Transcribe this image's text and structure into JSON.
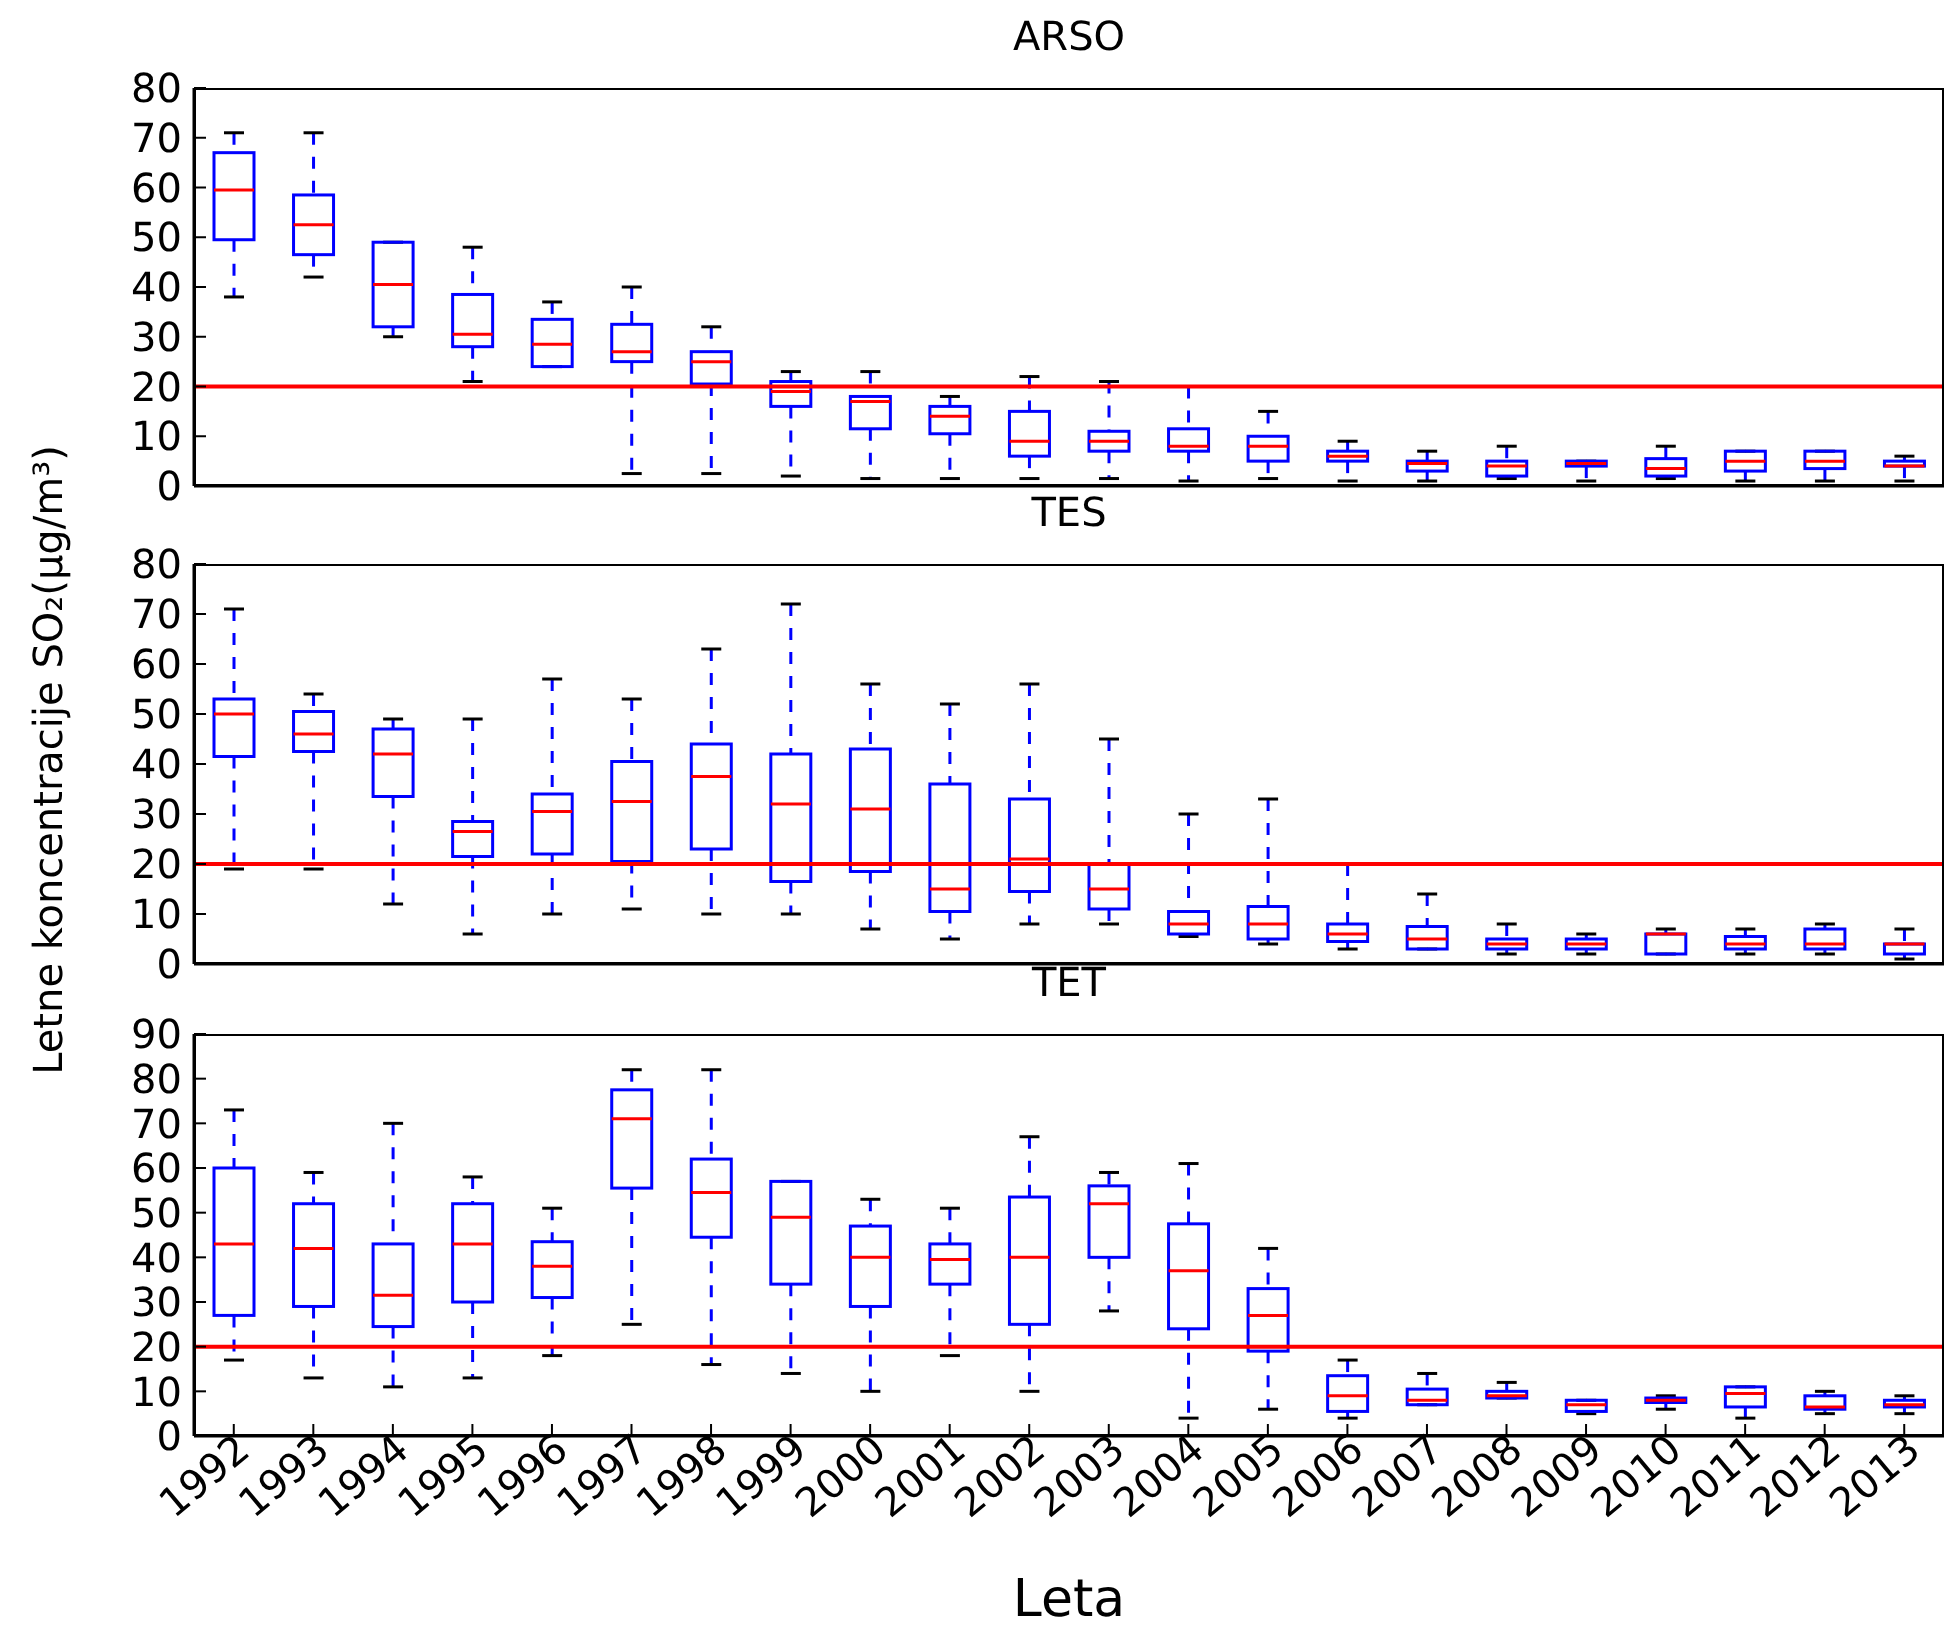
{
  "chart_data": [
    {
      "type": "box",
      "title": "ARSO",
      "categories": [
        "1992",
        "1993",
        "1994",
        "1995",
        "1996",
        "1997",
        "1998",
        "1999",
        "2000",
        "2001",
        "2002",
        "2003",
        "2004",
        "2005",
        "2006",
        "2007",
        "2008",
        "2009",
        "2010",
        "2011",
        "2012",
        "2013"
      ],
      "ylim": [
        0,
        80
      ],
      "yticks": [
        0,
        10,
        20,
        30,
        40,
        50,
        60,
        70,
        80
      ],
      "tick_labels": "y",
      "grid": false,
      "ref_lines": [
        {
          "axis": "y",
          "value": 20,
          "color": "#ff0000"
        }
      ],
      "series": [
        {
          "color": "#0000ff",
          "boxes": [
            {
              "low": 38,
              "q1": 49.5,
              "median": 59.5,
              "q3": 67,
              "high": 71
            },
            {
              "low": 42,
              "q1": 46.5,
              "median": 52.5,
              "q3": 58.5,
              "high": 71
            },
            {
              "low": 30,
              "q1": 32,
              "median": 40.5,
              "q3": 49,
              "high": 49
            },
            {
              "low": 21,
              "q1": 28,
              "median": 30.5,
              "q3": 38.5,
              "high": 48
            },
            {
              "low": 24,
              "q1": 24,
              "median": 28.5,
              "q3": 33.5,
              "high": 37
            },
            {
              "low": 2.5,
              "q1": 25,
              "median": 27,
              "q3": 32.5,
              "high": 40
            },
            {
              "low": 2.5,
              "q1": 20.5,
              "median": 25,
              "q3": 27,
              "high": 32
            },
            {
              "low": 2,
              "q1": 16,
              "median": 19,
              "q3": 21,
              "high": 23
            },
            {
              "low": 1.5,
              "q1": 11.5,
              "median": 17,
              "q3": 18,
              "high": 23
            },
            {
              "low": 1.5,
              "q1": 10.5,
              "median": 14,
              "q3": 16,
              "high": 18
            },
            {
              "low": 1.5,
              "q1": 6,
              "median": 9,
              "q3": 15,
              "high": 22
            },
            {
              "low": 1.5,
              "q1": 7,
              "median": 9,
              "q3": 11,
              "high": 21
            },
            {
              "low": 1,
              "q1": 7,
              "median": 8,
              "q3": 11.5,
              "high": 20
            },
            {
              "low": 1.5,
              "q1": 5,
              "median": 8,
              "q3": 10,
              "high": 15
            },
            {
              "low": 1,
              "q1": 5,
              "median": 6,
              "q3": 7,
              "high": 9
            },
            {
              "low": 1,
              "q1": 3,
              "median": 4.5,
              "q3": 5,
              "high": 7
            },
            {
              "low": 1.5,
              "q1": 2,
              "median": 4,
              "q3": 5,
              "high": 8
            },
            {
              "low": 1,
              "q1": 4,
              "median": 4.5,
              "q3": 5,
              "high": 5
            },
            {
              "low": 1.5,
              "q1": 2,
              "median": 3.5,
              "q3": 5.5,
              "high": 8
            },
            {
              "low": 1,
              "q1": 3,
              "median": 5,
              "q3": 7,
              "high": 7
            },
            {
              "low": 1,
              "q1": 3.5,
              "median": 5,
              "q3": 7,
              "high": 7
            },
            {
              "low": 1,
              "q1": 4,
              "median": 4,
              "q3": 5,
              "high": 6
            }
          ]
        }
      ]
    },
    {
      "type": "box",
      "title": "TES",
      "ylabel": "Letne koncentracije SO₂(μg/m³)",
      "categories": [
        "1992",
        "1993",
        "1994",
        "1995",
        "1996",
        "1997",
        "1998",
        "1999",
        "2000",
        "2001",
        "2002",
        "2003",
        "2004",
        "2005",
        "2006",
        "2007",
        "2008",
        "2009",
        "2010",
        "2011",
        "2012",
        "2013"
      ],
      "ylim": [
        0,
        80
      ],
      "yticks": [
        0,
        10,
        20,
        30,
        40,
        50,
        60,
        70,
        80
      ],
      "tick_labels": "y",
      "grid": false,
      "ref_lines": [
        {
          "axis": "y",
          "value": 20,
          "color": "#ff0000"
        }
      ],
      "series": [
        {
          "color": "#0000ff",
          "boxes": [
            {
              "low": 19,
              "q1": 41.5,
              "median": 50,
              "q3": 53,
              "high": 71
            },
            {
              "low": 19,
              "q1": 42.5,
              "median": 46,
              "q3": 50.5,
              "high": 54
            },
            {
              "low": 12,
              "q1": 33.5,
              "median": 42,
              "q3": 47,
              "high": 49
            },
            {
              "low": 6,
              "q1": 21.5,
              "median": 26.5,
              "q3": 28.5,
              "high": 49
            },
            {
              "low": 10,
              "q1": 22,
              "median": 30.5,
              "q3": 34,
              "high": 57
            },
            {
              "low": 11,
              "q1": 20.5,
              "median": 32.5,
              "q3": 40.5,
              "high": 53
            },
            {
              "low": 10,
              "q1": 23,
              "median": 37.5,
              "q3": 44,
              "high": 63
            },
            {
              "low": 10,
              "q1": 16.5,
              "median": 32,
              "q3": 42,
              "high": 72
            },
            {
              "low": 7,
              "q1": 18.5,
              "median": 31,
              "q3": 43,
              "high": 56
            },
            {
              "low": 5,
              "q1": 10.5,
              "median": 15,
              "q3": 36,
              "high": 52
            },
            {
              "low": 8,
              "q1": 14.5,
              "median": 21,
              "q3": 33,
              "high": 56
            },
            {
              "low": 8,
              "q1": 11,
              "median": 15,
              "q3": 20,
              "high": 45
            },
            {
              "low": 5.5,
              "q1": 6,
              "median": 8,
              "q3": 10.5,
              "high": 30
            },
            {
              "low": 4,
              "q1": 5,
              "median": 8,
              "q3": 11.5,
              "high": 33
            },
            {
              "low": 3,
              "q1": 4.5,
              "median": 6,
              "q3": 8,
              "high": 20
            },
            {
              "low": 3,
              "q1": 3,
              "median": 5,
              "q3": 7.5,
              "high": 14
            },
            {
              "low": 2,
              "q1": 3,
              "median": 4,
              "q3": 5,
              "high": 8
            },
            {
              "low": 2,
              "q1": 3,
              "median": 4,
              "q3": 5,
              "high": 6
            },
            {
              "low": 2,
              "q1": 2,
              "median": 6,
              "q3": 6,
              "high": 7
            },
            {
              "low": 2,
              "q1": 3,
              "median": 4,
              "q3": 5.5,
              "high": 7
            },
            {
              "low": 2,
              "q1": 3,
              "median": 4,
              "q3": 7,
              "high": 8
            },
            {
              "low": 1,
              "q1": 2,
              "median": 4,
              "q3": 4,
              "high": 7
            }
          ]
        }
      ]
    },
    {
      "type": "box",
      "title": "TET",
      "xlabel": "Leta",
      "categories": [
        "1992",
        "1993",
        "1994",
        "1995",
        "1996",
        "1997",
        "1998",
        "1999",
        "2000",
        "2001",
        "2002",
        "2003",
        "2004",
        "2005",
        "2006",
        "2007",
        "2008",
        "2009",
        "2010",
        "2011",
        "2012",
        "2013"
      ],
      "ylim": [
        0,
        90
      ],
      "yticks": [
        0,
        10,
        20,
        30,
        40,
        50,
        60,
        70,
        80,
        90
      ],
      "grid": false,
      "ref_lines": [
        {
          "axis": "y",
          "value": 20,
          "color": "#ff0000"
        }
      ],
      "series": [
        {
          "color": "#0000ff",
          "boxes": [
            {
              "low": 17,
              "q1": 27,
              "median": 43,
              "q3": 60,
              "high": 73
            },
            {
              "low": 13,
              "q1": 29,
              "median": 42,
              "q3": 52,
              "high": 59
            },
            {
              "low": 11,
              "q1": 24.5,
              "median": 31.5,
              "q3": 43,
              "high": 70
            },
            {
              "low": 13,
              "q1": 30,
              "median": 43,
              "q3": 52,
              "high": 58
            },
            {
              "low": 18,
              "q1": 31,
              "median": 38,
              "q3": 43.5,
              "high": 51
            },
            {
              "low": 25,
              "q1": 55.5,
              "median": 71,
              "q3": 77.5,
              "high": 82
            },
            {
              "low": 16,
              "q1": 44.5,
              "median": 54.5,
              "q3": 62,
              "high": 82
            },
            {
              "low": 14,
              "q1": 34,
              "median": 49,
              "q3": 57,
              "high": 57
            },
            {
              "low": 10,
              "q1": 29,
              "median": 40,
              "q3": 47,
              "high": 53
            },
            {
              "low": 18,
              "q1": 34,
              "median": 39.5,
              "q3": 43,
              "high": 51
            },
            {
              "low": 10,
              "q1": 25,
              "median": 40,
              "q3": 53.5,
              "high": 67
            },
            {
              "low": 28,
              "q1": 40,
              "median": 52,
              "q3": 56,
              "high": 59
            },
            {
              "low": 4,
              "q1": 24,
              "median": 37,
              "q3": 47.5,
              "high": 61
            },
            {
              "low": 6,
              "q1": 19,
              "median": 27,
              "q3": 33,
              "high": 42
            },
            {
              "low": 4,
              "q1": 5.5,
              "median": 9,
              "q3": 13.5,
              "high": 17
            },
            {
              "low": 7,
              "q1": 7,
              "median": 8,
              "q3": 10.5,
              "high": 14
            },
            {
              "low": 8.5,
              "q1": 8.5,
              "median": 9,
              "q3": 10,
              "high": 12
            },
            {
              "low": 5,
              "q1": 5.5,
              "median": 7,
              "q3": 8,
              "high": 8
            },
            {
              "low": 6,
              "q1": 7.5,
              "median": 8,
              "q3": 8.5,
              "high": 9
            },
            {
              "low": 4,
              "q1": 6.5,
              "median": 9.5,
              "q3": 11,
              "high": 11
            },
            {
              "low": 5,
              "q1": 6,
              "median": 6.5,
              "q3": 9,
              "high": 10
            },
            {
              "low": 5,
              "q1": 6.5,
              "median": 7,
              "q3": 8,
              "high": 9
            }
          ]
        }
      ]
    }
  ]
}
